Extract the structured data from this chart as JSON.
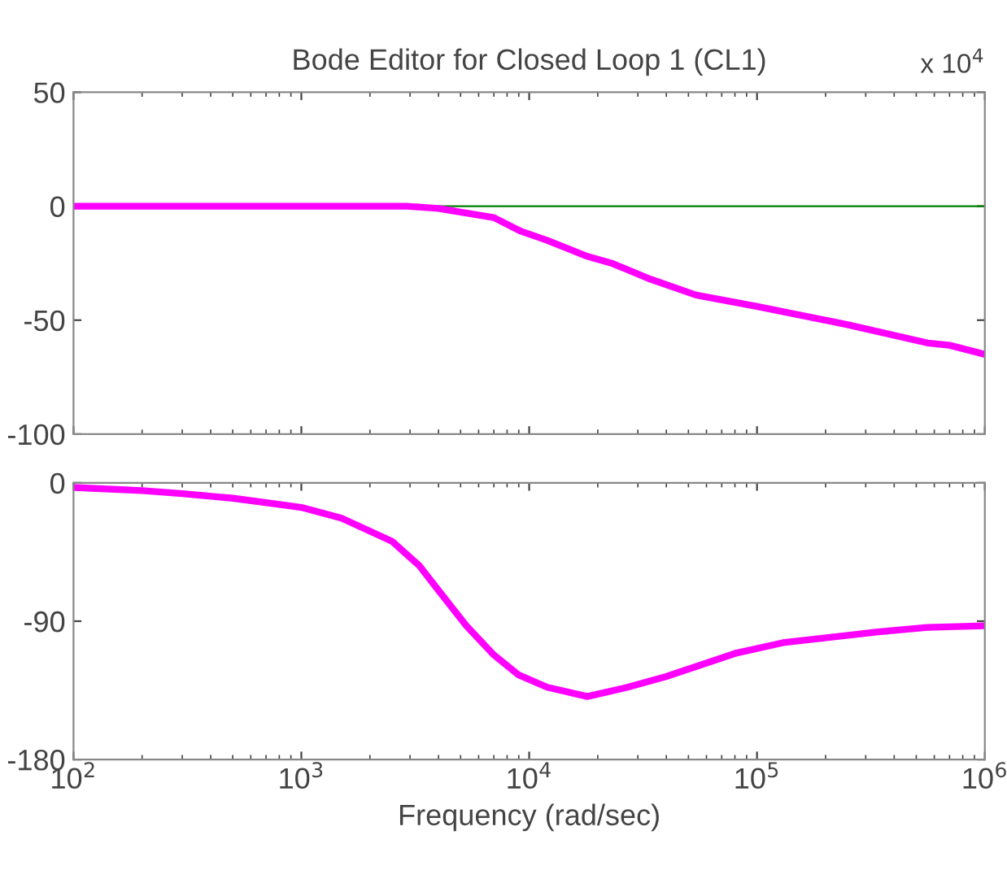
{
  "chart_data": [
    {
      "type": "line",
      "title": "Bode Editor for Closed Loop 1 (CL1)",
      "annotations": [
        "x 10$^{4}$"
      ],
      "log": "x",
      "grid": false,
      "tick_labels": "y",
      "marker": "none",
      "line_style": "solid",
      "xlim": [
        100,
        1000000
      ],
      "xticks": [
        {
          "value": 100,
          "label": null
        },
        {
          "value": 1000,
          "label": null
        },
        {
          "value": 10000,
          "label": null
        },
        {
          "value": 100000,
          "label": null
        },
        {
          "value": 1000000,
          "label": null
        }
      ],
      "ylim": [
        -100,
        50
      ],
      "yticks": [
        -100,
        -50,
        0,
        50
      ],
      "ref_lines": [
        {
          "axis": "y",
          "value": 0,
          "color": "#008000"
        }
      ],
      "series": [
        {
          "color": "#ff00ff",
          "x": [
            100,
            1000,
            2900,
            4000,
            7000,
            9200,
            12000,
            18000,
            23000,
            34000,
            54000,
            100000,
            250000,
            560000,
            700000,
            1000000
          ],
          "values": [
            0,
            0,
            0,
            -1,
            -5,
            -11,
            -15,
            -22,
            -25,
            -32,
            -39,
            -44,
            -52,
            -60,
            -61,
            -65
          ]
        }
      ]
    },
    {
      "type": "line",
      "xlabel": "Frequency (rad/sec)",
      "log": "x",
      "grid": false,
      "marker": "none",
      "line_style": "solid",
      "xlim": [
        100,
        1000000
      ],
      "xticks": [
        {
          "value": 100,
          "label": "10$^{2}$"
        },
        {
          "value": 1000,
          "label": "10$^{3}$"
        },
        {
          "value": 10000,
          "label": "10$^{4}$"
        },
        {
          "value": 100000,
          "label": "10$^{5}$"
        },
        {
          "value": 1000000,
          "label": "10$^{6}$"
        }
      ],
      "ylim": [
        -180,
        0
      ],
      "yticks": [
        -180,
        -90,
        0
      ],
      "series": [
        {
          "color": "#ff00ff",
          "x": [
            100,
            200,
            300,
            500,
            800,
            1000,
            1500,
            2500,
            3300,
            4000,
            5300,
            7000,
            9000,
            12000,
            18000,
            27000,
            40000,
            80000,
            130000,
            340000,
            560000,
            1000000
          ],
          "values": [
            -3,
            -5,
            -7,
            -10,
            -14,
            -16,
            -23,
            -38,
            -54,
            -70,
            -93,
            -112,
            -125,
            -133,
            -139,
            -133,
            -126,
            -111,
            -104,
            -97,
            -94,
            -93
          ]
        }
      ]
    }
  ]
}
